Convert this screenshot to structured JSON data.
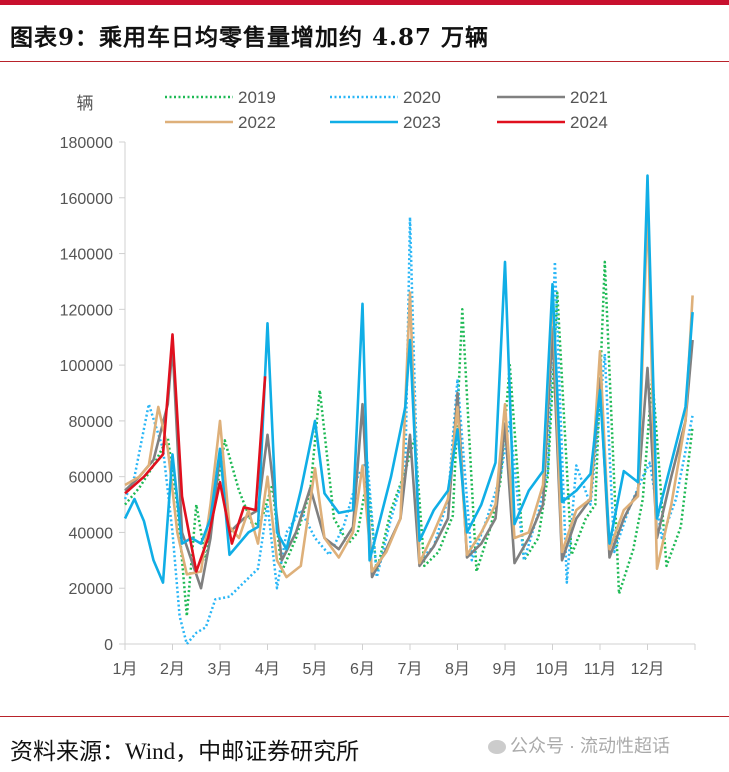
{
  "header": {
    "title": "图表9：乘用车日均零售量增加约 4.87 万辆"
  },
  "footer": {
    "source": "资料来源：Wind，中邮证券研究所",
    "watermark": "公众号 · 流动性超话"
  },
  "chart_data": {
    "type": "line",
    "title": "乘用车日均零售量增加约 4.87 万辆",
    "ylabel": "辆",
    "xlabel": "",
    "ylim": [
      0,
      180000
    ],
    "yticks": [
      0,
      20000,
      40000,
      60000,
      80000,
      100000,
      120000,
      140000,
      160000,
      180000
    ],
    "categories": [
      "1月",
      "2月",
      "3月",
      "4月",
      "5月",
      "6月",
      "7月",
      "8月",
      "9月",
      "10月",
      "11月",
      "12月"
    ],
    "grid": false,
    "legend_position": "top",
    "note": "x values are fractional month positions (1.0 = 1月 tick)",
    "series": [
      {
        "name": "2019",
        "color": "#1db954",
        "style": "dotted",
        "x": [
          1.0,
          1.3,
          1.6,
          1.9,
          2.1,
          2.3,
          2.5,
          2.7,
          2.9,
          3.1,
          3.4,
          3.7,
          3.9,
          4.1,
          4.3,
          4.6,
          4.9,
          5.1,
          5.4,
          5.7,
          5.9,
          6.1,
          6.3,
          6.6,
          6.9,
          7.1,
          7.3,
          7.6,
          7.9,
          8.1,
          8.4,
          8.7,
          8.9,
          9.1,
          9.4,
          9.7,
          9.9,
          10.1,
          10.4,
          10.7,
          10.9,
          11.1,
          11.4,
          11.7,
          11.9,
          12.1,
          12.4,
          12.7,
          12.95
        ],
        "y": [
          50000,
          56000,
          64000,
          74000,
          50000,
          10000,
          50000,
          30000,
          52000,
          73000,
          55000,
          42000,
          46000,
          57000,
          26000,
          38000,
          55000,
          91000,
          45000,
          36000,
          40000,
          60000,
          26000,
          48000,
          62000,
          74000,
          28000,
          33000,
          46000,
          120000,
          26000,
          42000,
          58000,
          100000,
          30000,
          38000,
          60000,
          126000,
          32000,
          45000,
          50000,
          137000,
          18000,
          34000,
          52000,
          96000,
          28000,
          42000,
          78000
        ]
      },
      {
        "name": "2020",
        "color": "#29b6f6",
        "style": "dotted",
        "x": [
          1.0,
          1.2,
          1.5,
          1.8,
          2.0,
          2.15,
          2.3,
          2.5,
          2.7,
          2.9,
          3.2,
          3.5,
          3.8,
          4.0,
          4.2,
          4.4,
          4.7,
          5.0,
          5.3,
          5.6,
          5.9,
          6.1,
          6.3,
          6.6,
          6.9,
          7.0,
          7.2,
          7.5,
          7.8,
          8.0,
          8.3,
          8.6,
          8.9,
          9.1,
          9.4,
          9.7,
          9.9,
          10.05,
          10.3,
          10.5,
          10.8,
          11.1,
          11.3,
          11.6,
          11.9,
          12.05,
          12.3,
          12.6,
          12.95
        ],
        "y": [
          52000,
          60000,
          86000,
          70000,
          40000,
          10000,
          0,
          4000,
          6000,
          16000,
          17000,
          22000,
          27000,
          50000,
          20000,
          40000,
          48000,
          38000,
          32000,
          42000,
          60000,
          66000,
          24000,
          45000,
          62000,
          153000,
          30000,
          35000,
          52000,
          95000,
          30000,
          44000,
          60000,
          80000,
          30000,
          47000,
          62000,
          137000,
          22000,
          64000,
          50000,
          104000,
          33000,
          48000,
          60000,
          65000,
          38000,
          52000,
          82000
        ]
      },
      {
        "name": "2021",
        "color": "#808080",
        "style": "solid",
        "x": [
          1.0,
          1.3,
          1.6,
          1.9,
          2.0,
          2.2,
          2.4,
          2.6,
          2.8,
          3.0,
          3.2,
          3.5,
          3.8,
          4.0,
          4.3,
          4.6,
          4.9,
          5.2,
          5.5,
          5.8,
          6.0,
          6.2,
          6.5,
          6.8,
          7.0,
          7.2,
          7.5,
          7.8,
          8.0,
          8.2,
          8.5,
          8.8,
          9.0,
          9.2,
          9.5,
          9.8,
          10.0,
          10.2,
          10.5,
          10.8,
          11.0,
          11.2,
          11.5,
          11.8,
          12.0,
          12.2,
          12.5,
          12.8,
          12.95
        ],
        "y": [
          55000,
          60000,
          66000,
          86000,
          107000,
          40000,
          30000,
          20000,
          38000,
          68000,
          40000,
          45000,
          48000,
          75000,
          30000,
          40000,
          56000,
          38000,
          34000,
          42000,
          86000,
          24000,
          34000,
          45000,
          75000,
          28000,
          35000,
          45000,
          90000,
          31000,
          36000,
          45000,
          79000,
          29000,
          38000,
          50000,
          113000,
          30000,
          45000,
          52000,
          95000,
          31000,
          45000,
          55000,
          99000,
          38000,
          60000,
          80000,
          109000
        ]
      },
      {
        "name": "2022",
        "color": "#deb07a",
        "style": "solid",
        "x": [
          1.0,
          1.3,
          1.5,
          1.7,
          1.9,
          2.1,
          2.3,
          2.6,
          2.8,
          3.0,
          3.2,
          3.4,
          3.6,
          3.8,
          4.0,
          4.2,
          4.4,
          4.7,
          5.0,
          5.2,
          5.5,
          5.8,
          6.0,
          6.2,
          6.5,
          6.8,
          7.0,
          7.2,
          7.5,
          7.8,
          8.0,
          8.2,
          8.5,
          8.8,
          9.0,
          9.2,
          9.5,
          9.8,
          10.0,
          10.2,
          10.5,
          10.8,
          11.0,
          11.2,
          11.5,
          11.8,
          12.0,
          12.2,
          12.5,
          12.8,
          12.95
        ],
        "y": [
          57000,
          60000,
          64000,
          85000,
          70000,
          40000,
          25000,
          26000,
          50000,
          80000,
          42000,
          38000,
          48000,
          36000,
          60000,
          30000,
          24000,
          28000,
          63000,
          38000,
          31000,
          40000,
          64000,
          26000,
          33000,
          45000,
          126000,
          29000,
          40000,
          52000,
          85000,
          32000,
          40000,
          50000,
          86000,
          38000,
          40000,
          57000,
          126000,
          33000,
          48000,
          52000,
          105000,
          34000,
          48000,
          53000,
          157000,
          27000,
          50000,
          80000,
          125000
        ]
      },
      {
        "name": "2023",
        "color": "#10aee6",
        "style": "solid",
        "x": [
          1.0,
          1.2,
          1.4,
          1.6,
          1.8,
          2.0,
          2.2,
          2.4,
          2.6,
          2.8,
          3.0,
          3.2,
          3.4,
          3.6,
          3.8,
          4.0,
          4.2,
          4.4,
          4.7,
          5.0,
          5.2,
          5.5,
          5.8,
          6.0,
          6.15,
          6.3,
          6.6,
          6.9,
          7.0,
          7.2,
          7.5,
          7.8,
          8.0,
          8.2,
          8.5,
          8.8,
          9.0,
          9.2,
          9.5,
          9.8,
          10.0,
          10.2,
          10.5,
          10.8,
          11.0,
          11.2,
          11.5,
          11.8,
          12.0,
          12.2,
          12.5,
          12.8,
          12.95
        ],
        "y": [
          45000,
          52000,
          44000,
          30000,
          22000,
          68000,
          36000,
          38000,
          36000,
          45000,
          70000,
          32000,
          36000,
          40000,
          42000,
          115000,
          40000,
          34000,
          55000,
          80000,
          54000,
          47000,
          48000,
          122000,
          30000,
          40000,
          60000,
          85000,
          109000,
          37000,
          48000,
          55000,
          77000,
          40000,
          50000,
          65000,
          137000,
          43000,
          55000,
          62000,
          129000,
          51000,
          55000,
          61000,
          91000,
          36000,
          62000,
          58000,
          168000,
          45000,
          65000,
          85000,
          119000
        ]
      },
      {
        "name": "2024",
        "color": "#e0101e",
        "style": "solid",
        "x": [
          1.0,
          1.4,
          1.8,
          2.0,
          2.2,
          2.5,
          2.75,
          3.0,
          3.25,
          3.5,
          3.75,
          3.95
        ],
        "y": [
          54000,
          60000,
          68000,
          111000,
          53000,
          26000,
          38000,
          58000,
          36000,
          49000,
          48000,
          96000
        ]
      }
    ]
  }
}
